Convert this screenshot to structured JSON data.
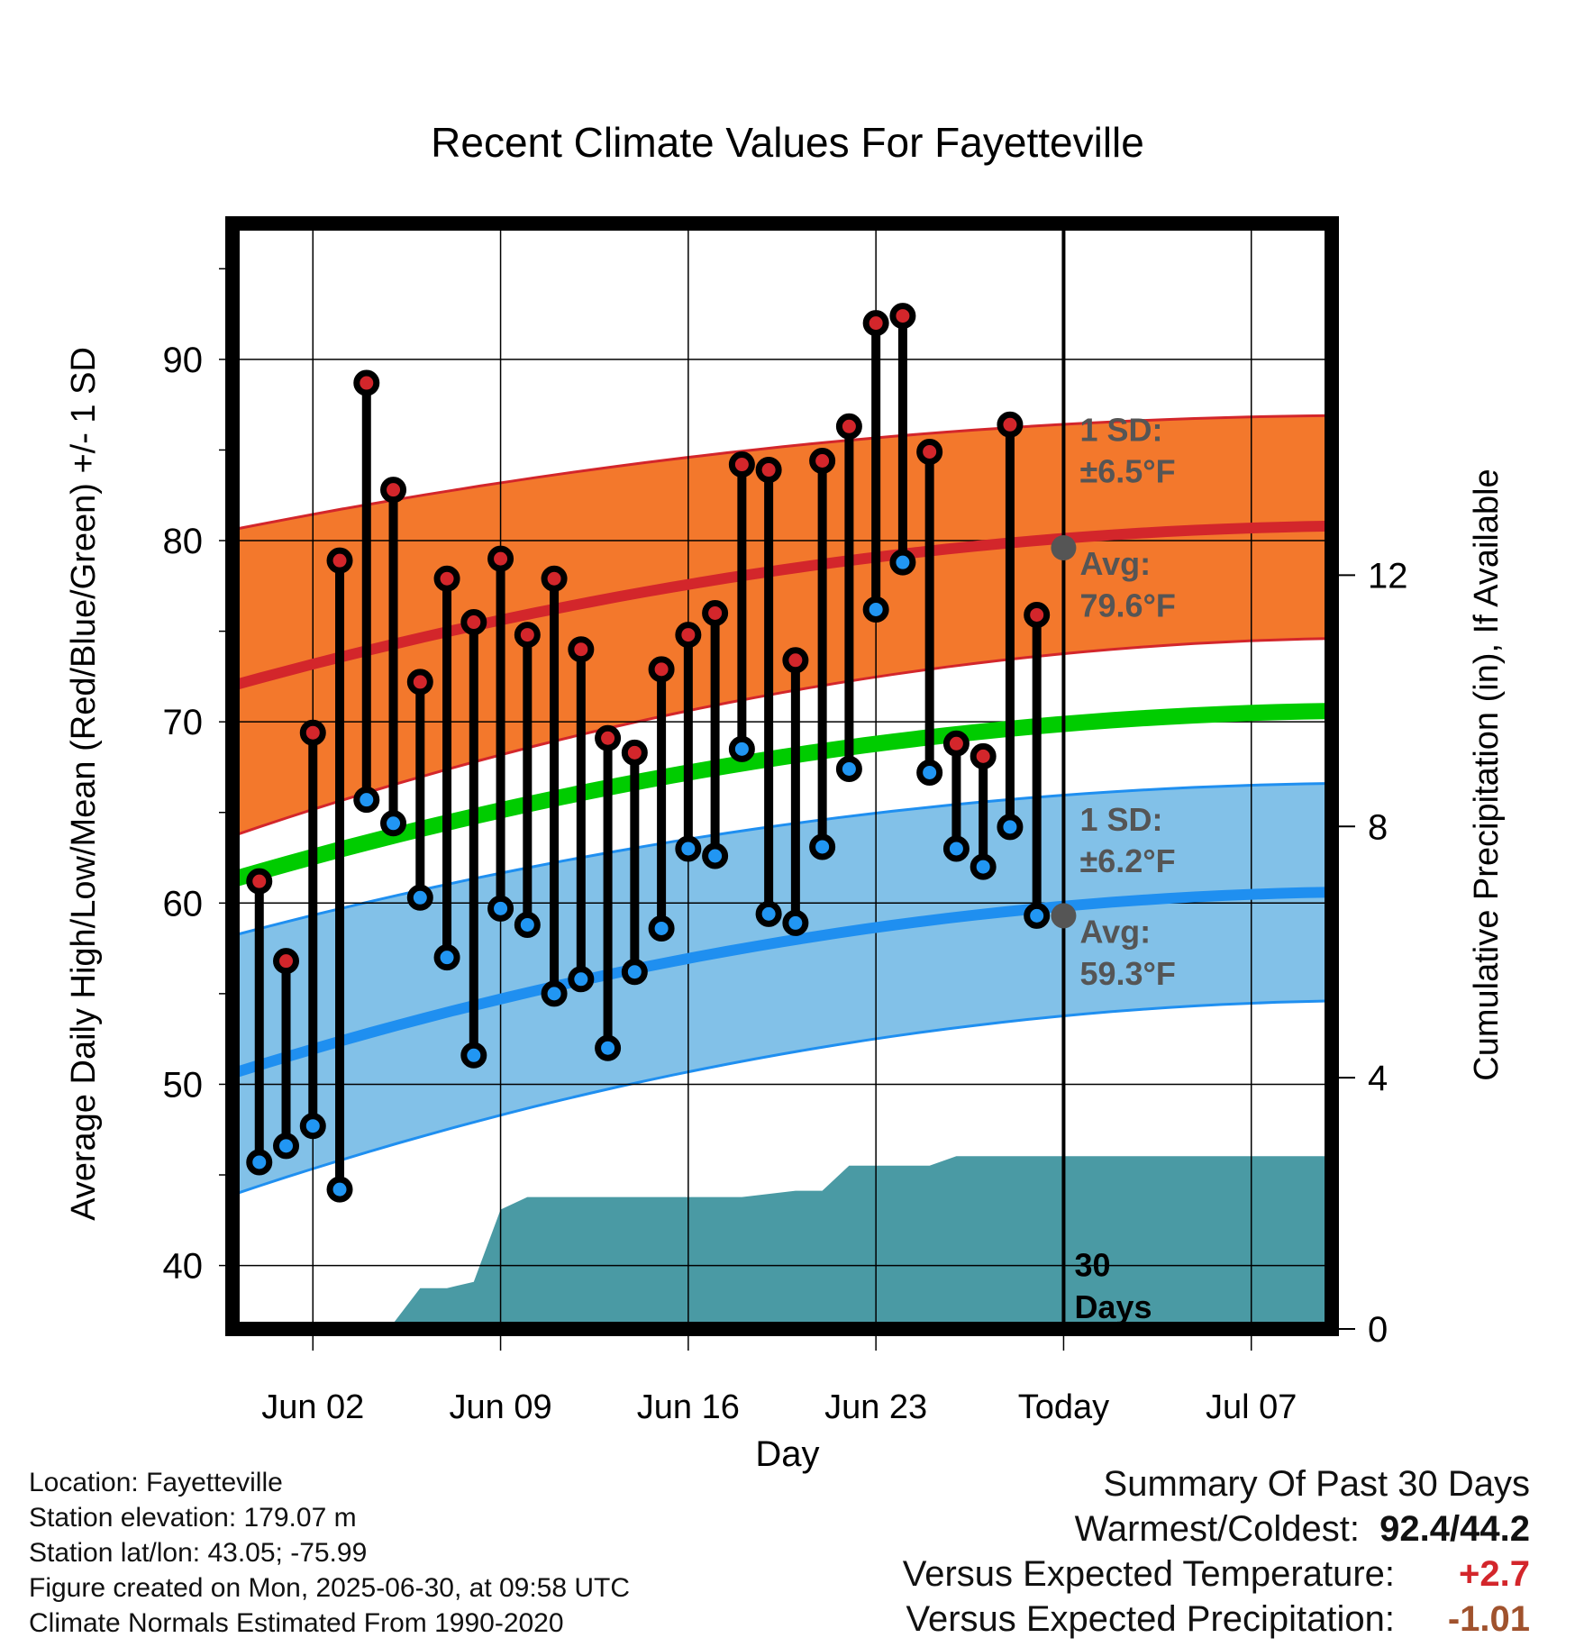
{
  "chart_data": {
    "type": "line",
    "title": "Recent Climate Values For Fayetteville",
    "xlabel": "Day",
    "ylabel": "Average Daily High/Low/Mean (Red/Blue/Green) +/- 1 SD",
    "y2label": "Cumulative Precipitation (in), If Available",
    "ylim": [
      36.5,
      97.5
    ],
    "y_ticks": [
      40,
      50,
      60,
      70,
      80,
      90
    ],
    "y_ticks_labels": [
      "40",
      "50",
      "60",
      "70",
      "80",
      "90"
    ],
    "y2lim": [
      0,
      17.6
    ],
    "y2_ticks": [
      0,
      4,
      8,
      12
    ],
    "y2_ticks_labels": [
      "0",
      "4",
      "8",
      "12"
    ],
    "x_range": [
      "2025-05-30",
      "2025-07-10"
    ],
    "x_ticks": [
      "2025-06-02",
      "2025-06-09",
      "2025-06-16",
      "2025-06-23",
      "2025-06-30",
      "2025-07-07"
    ],
    "x_tick_labels": [
      "Jun 02",
      "Jun 09",
      "Jun 16",
      "Jun 23",
      "Today",
      "Jul 07"
    ],
    "today": "2025-06-30",
    "grid": true,
    "observed": {
      "dates": [
        "2025-05-31",
        "2025-06-01",
        "2025-06-02",
        "2025-06-03",
        "2025-06-04",
        "2025-06-05",
        "2025-06-06",
        "2025-06-07",
        "2025-06-08",
        "2025-06-09",
        "2025-06-10",
        "2025-06-11",
        "2025-06-12",
        "2025-06-13",
        "2025-06-14",
        "2025-06-15",
        "2025-06-16",
        "2025-06-17",
        "2025-06-18",
        "2025-06-19",
        "2025-06-20",
        "2025-06-21",
        "2025-06-22",
        "2025-06-23",
        "2025-06-24",
        "2025-06-25",
        "2025-06-26",
        "2025-06-27",
        "2025-06-28",
        "2025-06-29"
      ],
      "high": [
        61.2,
        56.8,
        69.4,
        78.9,
        88.7,
        82.8,
        72.2,
        77.9,
        75.5,
        79.0,
        74.8,
        77.9,
        74.0,
        69.1,
        68.3,
        72.9,
        74.8,
        76.0,
        84.2,
        83.9,
        73.4,
        84.4,
        86.3,
        92.0,
        92.4,
        84.9,
        68.8,
        68.1,
        86.4,
        75.9
      ],
      "low": [
        45.7,
        46.6,
        47.7,
        44.2,
        65.7,
        64.4,
        60.3,
        57.0,
        51.6,
        59.7,
        58.8,
        55.0,
        55.8,
        52.0,
        56.2,
        58.6,
        63.0,
        62.6,
        68.5,
        59.4,
        58.9,
        63.1,
        67.4,
        76.2,
        78.8,
        67.2,
        63.0,
        62.0,
        64.2,
        59.3
      ]
    },
    "normals": {
      "dates": [
        "2025-05-30",
        "2025-07-10"
      ],
      "high_mean": [
        72.0,
        80.8
      ],
      "high_upper": [
        80.6,
        86.9
      ],
      "high_lower": [
        63.7,
        74.6
      ],
      "mean": [
        61.3,
        70.6
      ],
      "low_mean": [
        50.6,
        60.6
      ],
      "low_upper": [
        58.2,
        66.6
      ],
      "low_lower": [
        43.9,
        54.6
      ]
    },
    "precipitation": {
      "dates": [
        "2025-05-30",
        "2025-05-31",
        "2025-06-01",
        "2025-06-02",
        "2025-06-03",
        "2025-06-04",
        "2025-06-05",
        "2025-06-06",
        "2025-06-07",
        "2025-06-08",
        "2025-06-09",
        "2025-06-10",
        "2025-06-11",
        "2025-06-12",
        "2025-06-13",
        "2025-06-14",
        "2025-06-15",
        "2025-06-16",
        "2025-06-17",
        "2025-06-18",
        "2025-06-19",
        "2025-06-20",
        "2025-06-21",
        "2025-06-22",
        "2025-06-23",
        "2025-06-24",
        "2025-06-25",
        "2025-06-26",
        "2025-06-27",
        "2025-06-28",
        "2025-06-29",
        "2025-06-30",
        "2025-07-10"
      ],
      "cumulative": [
        0.02,
        0.08,
        0.08,
        0.09,
        0.09,
        0.09,
        0.09,
        0.65,
        0.65,
        0.75,
        1.9,
        2.1,
        2.1,
        2.1,
        2.1,
        2.1,
        2.1,
        2.1,
        2.1,
        2.1,
        2.15,
        2.2,
        2.2,
        2.6,
        2.6,
        2.6,
        2.6,
        2.75,
        2.75,
        2.75,
        2.75,
        2.75,
        2.75
      ]
    },
    "annotations": {
      "high_sd": "1 SD:",
      "high_sd_value": "±6.5°F",
      "high_avg": "Avg:",
      "high_avg_value": "79.6°F",
      "high_avg_point": 79.6,
      "low_sd": "1 SD:",
      "low_sd_value": "±6.2°F",
      "low_avg": "Avg:",
      "low_avg_value": "59.3°F",
      "low_avg_point": 59.3,
      "days_label_1": "30",
      "days_label_2": "Days"
    },
    "colors": {
      "high_band": "#f3782c",
      "high_line": "#d3262b",
      "low_band": "#82c1e8",
      "low_line": "#1f8ff0",
      "mean_line": "#00cc00",
      "precip": "#4a9aa4",
      "high_marker": "#d3262b",
      "low_marker": "#2196f3",
      "annotation_text": "#555555",
      "avg_point": "#555555"
    }
  },
  "footer": {
    "location": "Location: Fayetteville",
    "elevation": "Station elevation: 179.07 m",
    "latlon": "Station lat/lon: 43.05; -75.99",
    "created": "Figure created on Mon, 2025-06-30, at 09:58 UTC",
    "normals": "Climate Normals Estimated From 1990-2020"
  },
  "summary": {
    "title": "Summary Of Past 30 Days",
    "warmest_coldest_label": "Warmest/Coldest:",
    "warmest_coldest_value": "92.4/44.2",
    "temp_label": "Versus Expected Temperature:",
    "temp_value": "+2.7",
    "precip_label": "Versus Expected Precipitation:",
    "precip_value": "-1.01"
  }
}
